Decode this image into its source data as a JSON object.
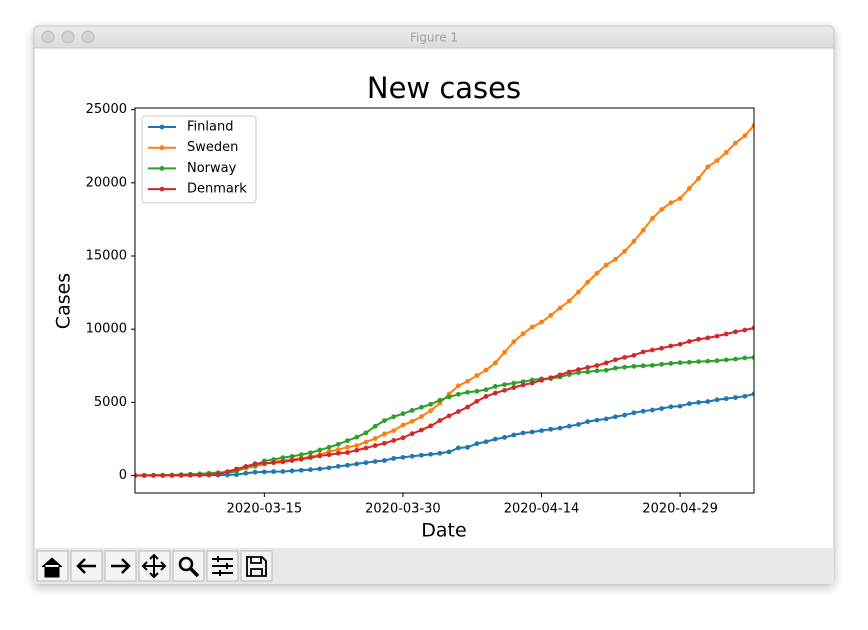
{
  "window": {
    "title": "Figure 1"
  },
  "chart_data": {
    "type": "line",
    "title": "New cases",
    "x_label": "Date",
    "y_label": "Cases",
    "x": [
      "2020-03-01",
      "2020-03-02",
      "2020-03-03",
      "2020-03-04",
      "2020-03-05",
      "2020-03-06",
      "2020-03-07",
      "2020-03-08",
      "2020-03-09",
      "2020-03-10",
      "2020-03-11",
      "2020-03-12",
      "2020-03-13",
      "2020-03-14",
      "2020-03-15",
      "2020-03-16",
      "2020-03-17",
      "2020-03-18",
      "2020-03-19",
      "2020-03-20",
      "2020-03-21",
      "2020-03-22",
      "2020-03-23",
      "2020-03-24",
      "2020-03-25",
      "2020-03-26",
      "2020-03-27",
      "2020-03-28",
      "2020-03-29",
      "2020-03-30",
      "2020-03-31",
      "2020-04-01",
      "2020-04-02",
      "2020-04-03",
      "2020-04-04",
      "2020-04-05",
      "2020-04-06",
      "2020-04-07",
      "2020-04-08",
      "2020-04-09",
      "2020-04-10",
      "2020-04-11",
      "2020-04-12",
      "2020-04-13",
      "2020-04-14",
      "2020-04-15",
      "2020-04-16",
      "2020-04-17",
      "2020-04-18",
      "2020-04-19",
      "2020-04-20",
      "2020-04-21",
      "2020-04-22",
      "2020-04-23",
      "2020-04-24",
      "2020-04-25",
      "2020-04-26",
      "2020-04-27",
      "2020-04-28",
      "2020-04-29",
      "2020-04-30",
      "2020-05-01",
      "2020-05-02",
      "2020-05-03",
      "2020-05-04",
      "2020-05-05",
      "2020-05-06",
      "2020-05-07"
    ],
    "series": [
      {
        "name": "Finland",
        "color": "#1f77b4",
        "values": [
          1,
          1,
          6,
          6,
          7,
          12,
          15,
          19,
          23,
          30,
          40,
          59,
          155,
          225,
          244,
          267,
          272,
          319,
          359,
          400,
          450,
          523,
          626,
          700,
          792,
          880,
          958,
          1025,
          1167,
          1240,
          1313,
          1384,
          1446,
          1518,
          1615,
          1882,
          1927,
          2176,
          2308,
          2487,
          2605,
          2769,
          2905,
          2974,
          3064,
          3161,
          3237,
          3369,
          3489,
          3681,
          3783,
          3868,
          4014,
          4129,
          4284,
          4395,
          4475,
          4576,
          4695,
          4740,
          4906,
          4995,
          5051,
          5176,
          5254,
          5327,
          5412,
          5573
        ]
      },
      {
        "name": "Sweden",
        "color": "#ff7f0e",
        "values": [
          0,
          7,
          13,
          14,
          15,
          21,
          35,
          94,
          161,
          203,
          248,
          326,
          500,
          620,
          775,
          924,
          1022,
          1103,
          1167,
          1290,
          1423,
          1639,
          1770,
          1934,
          2046,
          2286,
          2526,
          2840,
          3069,
          3447,
          3700,
          4028,
          4435,
          4947,
          5568,
          6131,
          6443,
          6830,
          7206,
          7693,
          8419,
          9141,
          9685,
          10151,
          10483,
          10948,
          11445,
          11927,
          12540,
          13216,
          13822,
          14385,
          14777,
          15322,
          16004,
          16755,
          17567,
          18177,
          18640,
          18926,
          19621,
          20302,
          21092,
          21520,
          22082,
          22721,
          23216,
          23918
        ]
      },
      {
        "name": "Norway",
        "color": "#2ca02c",
        "values": [
          0,
          15,
          19,
          25,
          32,
          56,
          87,
          108,
          147,
          169,
          192,
          277,
          598,
          702,
          996,
          1090,
          1221,
          1308,
          1423,
          1552,
          1741,
          1926,
          2132,
          2383,
          2621,
          2916,
          3366,
          3752,
          4015,
          4227,
          4445,
          4665,
          4863,
          5147,
          5370,
          5550,
          5687,
          5755,
          5865,
          6086,
          6211,
          6314,
          6409,
          6525,
          6603,
          6623,
          6740,
          6896,
          7036,
          7078,
          7156,
          7191,
          7338,
          7401,
          7463,
          7499,
          7527,
          7599,
          7660,
          7710,
          7738,
          7783,
          7809,
          7847,
          7904,
          7955,
          8034,
          8070
        ]
      },
      {
        "name": "Denmark",
        "color": "#d62728",
        "values": [
          0,
          1,
          4,
          6,
          10,
          10,
          20,
          23,
          35,
          90,
          262,
          444,
          617,
          804,
          836,
          875,
          933,
          1024,
          1115,
          1225,
          1337,
          1420,
          1514,
          1572,
          1724,
          1877,
          2046,
          2201,
          2395,
          2577,
          2860,
          3107,
          3386,
          3757,
          4077,
          4369,
          4681,
          5071,
          5402,
          5635,
          5819,
          6014,
          6191,
          6318,
          6511,
          6681,
          6876,
          7073,
          7242,
          7384,
          7515,
          7695,
          7912,
          8073,
          8210,
          8445,
          8575,
          8698,
          8851,
          8968,
          9158,
          9311,
          9407,
          9523,
          9670,
          9820,
          9938,
          10083
        ]
      }
    ],
    "xlim": [
      "2020-03-01",
      "2020-05-07"
    ],
    "xticks": [
      "2020-03-15",
      "2020-03-30",
      "2020-04-14",
      "2020-04-29"
    ],
    "ylim": [
      -1196,
      25114
    ],
    "yticks": [
      0,
      5000,
      10000,
      15000,
      20000,
      25000
    ],
    "grid": false,
    "legend": "upper left"
  }
}
